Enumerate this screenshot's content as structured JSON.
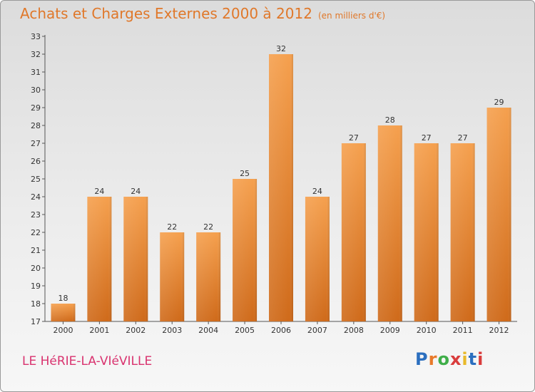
{
  "title": "Achats et Charges Externes 2000 à 2012",
  "subtitle": "(en milliers d'€)",
  "place": "LE HéRIE-LA-VIéVILLE",
  "brand": {
    "text": "Proxiti",
    "letter_colors": [
      "#2b6fbf",
      "#e8792a",
      "#3fae49",
      "#d93c3c",
      "#e8b92a",
      "#2b6fbf",
      "#d93c3c"
    ]
  },
  "colors": {
    "bar_top": "#f5a04e",
    "bar_bottom": "#cf6a1a",
    "title": "#e0782a",
    "place": "#d9336f"
  },
  "chart_data": {
    "type": "bar",
    "title": "Achats et Charges Externes 2000 à 2012",
    "subtitle": "(en milliers d'€)",
    "xlabel": "",
    "ylabel": "",
    "categories": [
      "2000",
      "2001",
      "2002",
      "2003",
      "2004",
      "2005",
      "2006",
      "2007",
      "2008",
      "2009",
      "2010",
      "2011",
      "2012"
    ],
    "values": [
      18,
      24,
      24,
      22,
      22,
      25,
      32,
      24,
      27,
      28,
      27,
      27,
      29
    ],
    "ylim": [
      17,
      33
    ],
    "yticks": [
      17,
      18,
      19,
      20,
      21,
      22,
      23,
      24,
      25,
      26,
      27,
      28,
      29,
      30,
      31,
      32,
      33
    ],
    "grid": false,
    "legend": "none"
  }
}
